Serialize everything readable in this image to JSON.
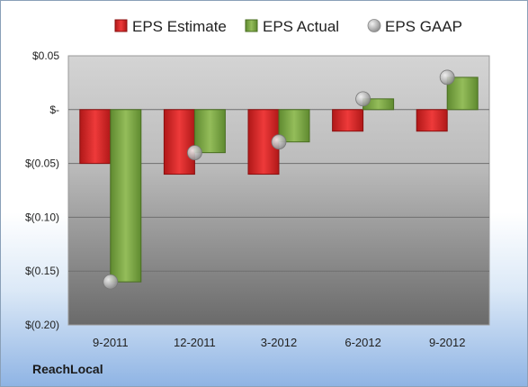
{
  "chart_data": {
    "type": "bar",
    "categories": [
      "9-2011",
      "12-2011",
      "3-2012",
      "6-2012",
      "9-2012"
    ],
    "series": [
      {
        "name": "EPS Estimate",
        "values": [
          -0.05,
          -0.06,
          -0.06,
          -0.02,
          -0.02
        ],
        "color": "#d42a2a",
        "kind": "bar"
      },
      {
        "name": "EPS Actual",
        "values": [
          -0.16,
          -0.04,
          -0.03,
          0.01,
          0.03
        ],
        "color": "#7fa84a",
        "kind": "bar"
      },
      {
        "name": "EPS GAAP",
        "values": [
          -0.16,
          -0.04,
          -0.03,
          0.01,
          0.03
        ],
        "color": "#b8b8b8",
        "kind": "marker"
      }
    ],
    "yticks": [
      0.05,
      0,
      -0.05,
      -0.1,
      -0.15,
      -0.2
    ],
    "ytick_labels": [
      "$0.05",
      "$-",
      "$(0.05)",
      "$(0.10)",
      "$(0.15)",
      "$(0.20)"
    ],
    "ylim": [
      -0.2,
      0.05
    ],
    "grid": true,
    "legend": "top"
  },
  "brand": "ReachLocal"
}
